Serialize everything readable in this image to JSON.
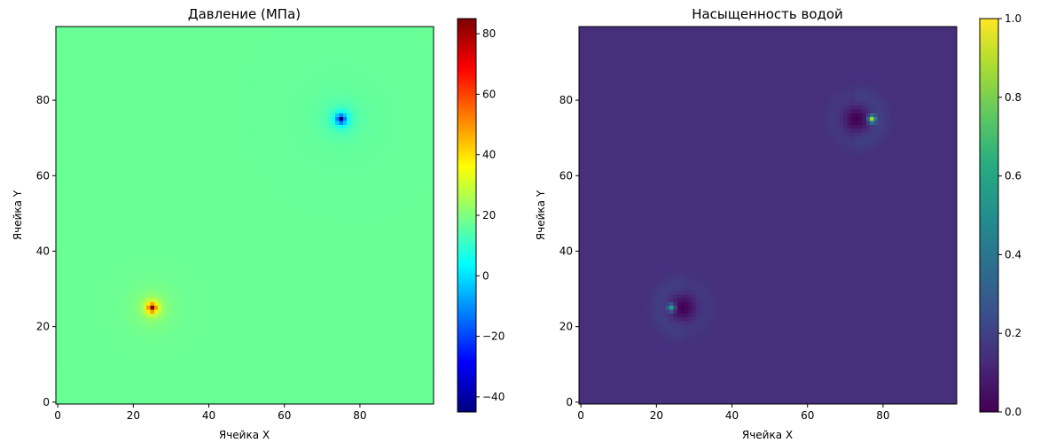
{
  "chart_data": [
    {
      "type": "heatmap",
      "title": "Давление (МПа)",
      "xlabel": "Ячейка X",
      "ylabel": "Ячейка Y",
      "grid_size": [
        100,
        100
      ],
      "xlim": [
        0,
        99
      ],
      "ylim": [
        0,
        99
      ],
      "xticks": [
        0,
        20,
        40,
        60,
        80
      ],
      "yticks": [
        0,
        20,
        40,
        60,
        80
      ],
      "colormap": "jet",
      "background_value": 17,
      "sources": [
        {
          "x": 25,
          "y": 25,
          "peak_value": 85
        },
        {
          "x": 75,
          "y": 75,
          "peak_value": -45
        }
      ],
      "colorbar": {
        "min": -45,
        "max": 85,
        "ticks": [
          -40,
          -20,
          0,
          20,
          40,
          60,
          80
        ]
      }
    },
    {
      "type": "heatmap",
      "title": "Насыщенность водой",
      "xlabel": "Ячейка X",
      "ylabel": "Ячейка Y",
      "grid_size": [
        100,
        100
      ],
      "xlim": [
        0,
        99
      ],
      "ylim": [
        0,
        99
      ],
      "xticks": [
        0,
        20,
        40,
        60,
        80
      ],
      "yticks": [
        0,
        20,
        40,
        60,
        80
      ],
      "colormap": "viridis",
      "background_value": 0.14,
      "features": [
        {
          "x": 24,
          "y": 25,
          "high_value": 0.6,
          "low_center_x": 27,
          "low_value": 0.0
        },
        {
          "x": 77,
          "y": 75,
          "high_value": 0.85,
          "low_center_x": 73,
          "low_value": 0.0
        }
      ],
      "colorbar": {
        "min": 0.0,
        "max": 1.0,
        "ticks": [
          0.0,
          0.2,
          0.4,
          0.6,
          0.8,
          1.0
        ]
      }
    }
  ]
}
